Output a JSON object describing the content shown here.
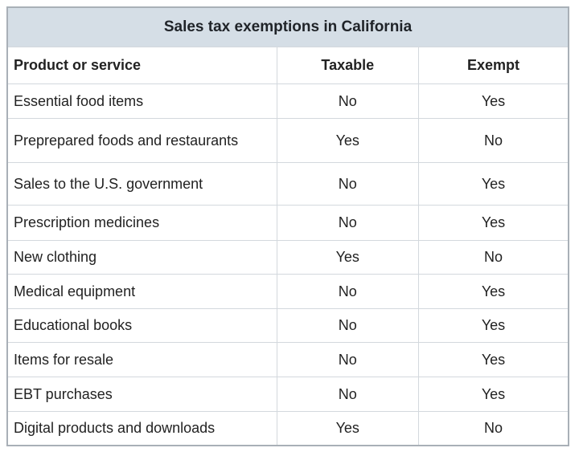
{
  "title": "Sales tax exemptions in California",
  "headers": [
    "Product or service",
    "Taxable",
    "Exempt"
  ],
  "rows": [
    [
      "Essential food items",
      "No",
      "Yes"
    ],
    [
      "Preprepared foods and restaurants",
      "Yes",
      "No"
    ],
    [
      "Sales to the U.S. government",
      "No",
      "Yes"
    ],
    [
      "Prescription medicines",
      "No",
      "Yes"
    ],
    [
      "New clothing",
      "Yes",
      "No"
    ],
    [
      "Medical equipment",
      "No",
      "Yes"
    ],
    [
      "Educational books",
      "No",
      "Yes"
    ],
    [
      "Items for resale",
      "No",
      "Yes"
    ],
    [
      "EBT purchases",
      "No",
      "Yes"
    ],
    [
      "Digital products and downloads",
      "Yes",
      "No"
    ]
  ],
  "colors": {
    "title_bg": "#d5dee6",
    "border": "#d3d8dd",
    "outer_border": "#a9b0b7"
  }
}
